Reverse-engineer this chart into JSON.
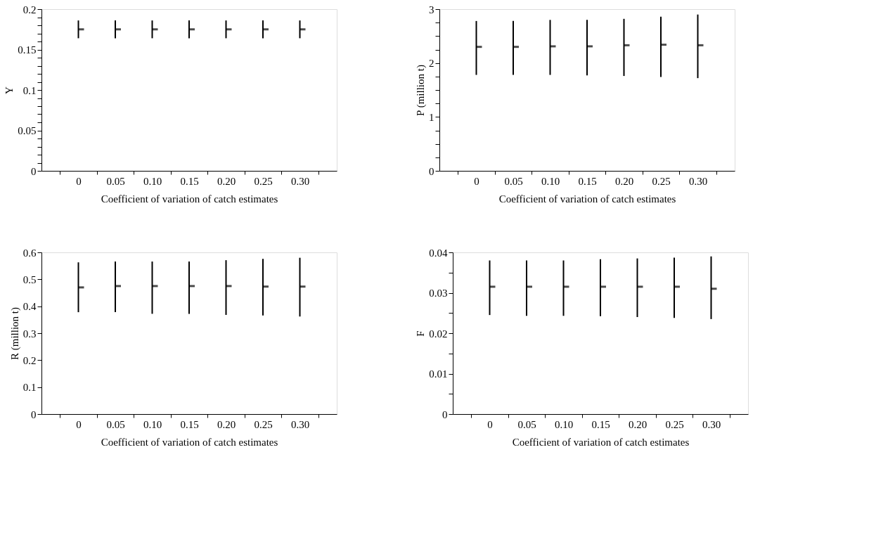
{
  "chart_data": [
    {
      "type": "scatter",
      "categories": [
        "0",
        "0.05",
        "0.10",
        "0.15",
        "0.20",
        "0.25",
        "0.30"
      ],
      "xlabel": "Coefficient of variation of catch estimates",
      "ylabel": "Y",
      "values": [
        0.175,
        0.175,
        0.175,
        0.175,
        0.175,
        0.175,
        0.175
      ],
      "errors": [
        [
          0.164,
          0.186
        ],
        [
          0.164,
          0.186
        ],
        [
          0.164,
          0.186
        ],
        [
          0.164,
          0.186
        ],
        [
          0.164,
          0.186
        ],
        [
          0.164,
          0.186
        ],
        [
          0.164,
          0.186
        ]
      ],
      "ylim": [
        0,
        0.2
      ],
      "yticks": [
        0,
        {
          "value": 0.01,
          "label": null
        },
        {
          "value": 0.02,
          "label": null
        },
        {
          "value": 0.03,
          "label": null
        },
        {
          "value": 0.04,
          "label": null
        },
        0.05,
        {
          "value": 0.06,
          "label": null
        },
        {
          "value": 0.07,
          "label": null
        },
        {
          "value": 0.08,
          "label": null
        },
        {
          "value": 0.09,
          "label": null
        },
        0.1,
        {
          "value": 0.11,
          "label": null
        },
        {
          "value": 0.12,
          "label": null
        },
        {
          "value": 0.13,
          "label": null
        },
        {
          "value": 0.14,
          "label": null
        },
        0.15,
        {
          "value": 0.16,
          "label": null
        },
        {
          "value": 0.17,
          "label": null
        },
        {
          "value": 0.18,
          "label": null
        },
        {
          "value": 0.19,
          "label": null
        },
        0.2
      ],
      "grid": false
    },
    {
      "type": "scatter",
      "categories": [
        "0",
        "0.05",
        "0.10",
        "0.15",
        "0.20",
        "0.25",
        "0.30"
      ],
      "xlabel": "Coefficient of variation of catch estimates",
      "ylabel": "P (million t)",
      "values": [
        2.3,
        2.3,
        2.31,
        2.31,
        2.33,
        2.34,
        2.33
      ],
      "errors": [
        [
          1.78,
          2.78
        ],
        [
          1.78,
          2.78
        ],
        [
          1.78,
          2.8
        ],
        [
          1.77,
          2.8
        ],
        [
          1.76,
          2.82
        ],
        [
          1.74,
          2.86
        ],
        [
          1.72,
          2.9
        ]
      ],
      "ylim": [
        0,
        3
      ],
      "yticks": [
        0,
        {
          "value": 0.25,
          "label": null
        },
        {
          "value": 0.5,
          "label": null
        },
        {
          "value": 0.75,
          "label": null
        },
        1,
        {
          "value": 1.25,
          "label": null
        },
        {
          "value": 1.5,
          "label": null
        },
        {
          "value": 1.75,
          "label": null
        },
        2,
        {
          "value": 2.25,
          "label": null
        },
        {
          "value": 2.5,
          "label": null
        },
        {
          "value": 2.75,
          "label": null
        },
        3
      ],
      "grid": false
    },
    {
      "type": "scatter",
      "categories": [
        "0",
        "0.05",
        "0.10",
        "0.15",
        "0.20",
        "0.25",
        "0.30"
      ],
      "xlabel": "Coefficient of variation of catch estimates",
      "ylabel": "R (million t)",
      "values": [
        0.47,
        0.475,
        0.475,
        0.475,
        0.475,
        0.473,
        0.473
      ],
      "errors": [
        [
          0.378,
          0.563
        ],
        [
          0.378,
          0.566
        ],
        [
          0.372,
          0.566
        ],
        [
          0.372,
          0.566
        ],
        [
          0.368,
          0.571
        ],
        [
          0.366,
          0.576
        ],
        [
          0.362,
          0.58
        ]
      ],
      "ylim": [
        0,
        0.6
      ],
      "yticks": [
        0,
        0.1,
        0.2,
        0.3,
        0.4,
        0.5,
        0.6
      ],
      "grid": false
    },
    {
      "type": "scatter",
      "categories": [
        "0",
        "0.05",
        "0.10",
        "0.15",
        "0.20",
        "0.25",
        "0.30"
      ],
      "xlabel": "Coefficient of variation of catch estimates",
      "ylabel": "F",
      "values": [
        0.0315,
        0.0315,
        0.0315,
        0.0315,
        0.0315,
        0.0315,
        0.031
      ],
      "errors": [
        [
          0.0245,
          0.038
        ],
        [
          0.0243,
          0.038
        ],
        [
          0.0243,
          0.038
        ],
        [
          0.0242,
          0.0383
        ],
        [
          0.024,
          0.0385
        ],
        [
          0.0238,
          0.0387
        ],
        [
          0.0235,
          0.039
        ]
      ],
      "ylim": [
        0,
        0.04
      ],
      "yticks": [
        0,
        {
          "value": 0.005,
          "label": null
        },
        0.01,
        {
          "value": 0.015,
          "label": null
        },
        0.02,
        {
          "value": 0.025,
          "label": null
        },
        0.03,
        {
          "value": 0.035,
          "label": null
        },
        0.04
      ],
      "grid": false
    }
  ]
}
